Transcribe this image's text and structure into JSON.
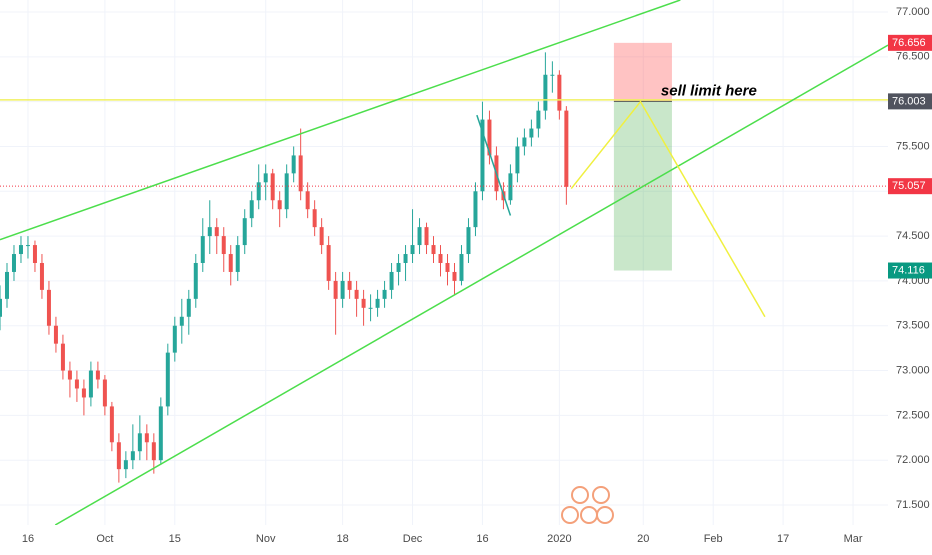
{
  "chart_data": {
    "type": "candlestick",
    "series": [
      {
        "up_color": "#26a69a",
        "down_color": "#ef5350",
        "x": [
          -4,
          -3,
          -2,
          -1,
          0,
          1,
          2,
          3,
          4,
          5,
          6,
          7,
          8,
          9,
          10,
          11,
          12,
          13,
          14,
          15,
          16,
          17,
          18,
          19,
          20,
          21,
          22,
          23,
          24,
          25,
          26,
          27,
          28,
          29,
          30,
          31,
          32,
          33,
          34,
          35,
          36,
          37,
          38,
          39,
          40,
          41,
          42,
          43,
          44,
          45,
          46,
          47,
          48,
          49,
          50,
          51,
          52,
          53,
          54,
          55,
          56,
          57,
          58,
          59,
          60,
          61,
          62,
          63,
          64,
          65,
          66,
          67,
          68,
          69,
          70,
          71,
          72,
          73,
          74,
          75,
          76,
          77
        ],
        "open": [
          73.6,
          73.8,
          74.1,
          74.3,
          74.4,
          74.4,
          74.2,
          73.9,
          73.5,
          73.3,
          73.0,
          72.9,
          72.8,
          72.7,
          73.0,
          72.9,
          72.6,
          72.2,
          71.9,
          72.0,
          72.1,
          72.3,
          72.2,
          72.0,
          72.6,
          73.2,
          73.5,
          73.6,
          73.8,
          74.2,
          74.5,
          74.6,
          74.5,
          74.3,
          74.1,
          74.4,
          74.7,
          74.9,
          75.1,
          75.2,
          74.9,
          74.8,
          75.2,
          75.4,
          75.0,
          74.8,
          74.6,
          74.4,
          74.0,
          73.8,
          74.0,
          73.9,
          73.8,
          73.7,
          73.7,
          73.8,
          73.9,
          74.1,
          74.2,
          74.3,
          74.4,
          74.6,
          74.4,
          74.3,
          74.2,
          74.1,
          74.0,
          74.3,
          74.6,
          75.0,
          75.8,
          75.4,
          75.0,
          74.9,
          75.2,
          75.5,
          75.6,
          75.7,
          75.9,
          76.3,
          76.3,
          75.9
        ],
        "high": [
          73.95,
          74.2,
          74.4,
          74.5,
          74.5,
          74.45,
          74.3,
          74.0,
          73.6,
          73.4,
          73.1,
          73.0,
          72.9,
          73.1,
          73.1,
          72.95,
          72.65,
          72.3,
          72.1,
          72.4,
          72.5,
          72.4,
          72.3,
          72.7,
          73.3,
          73.6,
          73.8,
          73.9,
          74.3,
          74.7,
          74.9,
          74.7,
          74.6,
          74.4,
          74.5,
          74.8,
          75.0,
          75.3,
          75.3,
          75.25,
          75.0,
          75.3,
          75.5,
          75.7,
          75.1,
          74.9,
          74.7,
          74.5,
          74.1,
          74.1,
          74.1,
          74.0,
          73.9,
          73.85,
          73.9,
          74.0,
          74.2,
          74.3,
          74.4,
          74.8,
          74.7,
          74.65,
          74.5,
          74.4,
          74.3,
          74.2,
          74.4,
          74.7,
          75.1,
          76.0,
          75.9,
          75.5,
          75.1,
          75.3,
          75.6,
          75.7,
          75.8,
          76.0,
          76.55,
          76.45,
          76.35,
          75.95
        ],
        "low": [
          73.45,
          73.7,
          74.0,
          74.2,
          74.25,
          74.1,
          73.8,
          73.4,
          73.2,
          72.9,
          72.7,
          72.65,
          72.5,
          72.6,
          72.8,
          72.5,
          72.1,
          71.75,
          71.8,
          71.9,
          72.0,
          72.0,
          71.85,
          71.95,
          72.5,
          73.1,
          73.3,
          73.4,
          73.7,
          74.1,
          74.3,
          74.3,
          74.1,
          73.95,
          74.0,
          74.3,
          74.6,
          74.8,
          74.9,
          74.8,
          74.6,
          74.7,
          75.1,
          74.9,
          74.7,
          74.5,
          74.3,
          73.9,
          73.4,
          73.7,
          73.8,
          73.6,
          73.5,
          73.55,
          73.6,
          73.7,
          73.8,
          73.95,
          74.0,
          74.2,
          74.3,
          74.3,
          74.2,
          74.05,
          73.95,
          73.85,
          73.95,
          74.2,
          74.5,
          74.9,
          75.3,
          74.9,
          74.8,
          74.85,
          75.1,
          75.4,
          75.5,
          75.6,
          75.8,
          76.1,
          75.8,
          74.85
        ],
        "close": [
          73.8,
          74.1,
          74.3,
          74.4,
          74.4,
          74.2,
          73.9,
          73.5,
          73.3,
          73.0,
          72.9,
          72.8,
          72.7,
          73.0,
          72.9,
          72.6,
          72.2,
          71.9,
          72.0,
          72.1,
          72.3,
          72.2,
          72.0,
          72.6,
          73.2,
          73.5,
          73.6,
          73.8,
          74.2,
          74.5,
          74.6,
          74.5,
          74.3,
          74.1,
          74.4,
          74.7,
          74.9,
          75.1,
          75.2,
          74.9,
          74.8,
          75.2,
          75.4,
          75.0,
          74.8,
          74.6,
          74.4,
          74.0,
          73.8,
          74.0,
          73.9,
          73.8,
          73.7,
          73.7,
          73.8,
          73.9,
          74.1,
          74.2,
          74.3,
          74.4,
          74.6,
          74.4,
          74.3,
          74.2,
          74.1,
          74.0,
          74.3,
          74.6,
          75.0,
          75.8,
          75.4,
          75.0,
          74.9,
          75.2,
          75.5,
          75.6,
          75.7,
          75.9,
          76.3,
          76.3,
          75.9,
          75.05
        ]
      }
    ],
    "xlim": [
      -4,
      123
    ],
    "xticks": [
      {
        "value": 0,
        "label": "16"
      },
      {
        "value": 11,
        "label": "Oct"
      },
      {
        "value": 21,
        "label": "15"
      },
      {
        "value": 34,
        "label": "Nov"
      },
      {
        "value": 45,
        "label": "18"
      },
      {
        "value": 55,
        "label": "Dec"
      },
      {
        "value": 65,
        "label": "16"
      },
      {
        "value": 76,
        "label": "2020"
      },
      {
        "value": 88,
        "label": "20"
      },
      {
        "value": 98,
        "label": "Feb"
      },
      {
        "value": 108,
        "label": "17"
      },
      {
        "value": 118,
        "label": "Mar"
      }
    ],
    "ylim": [
      71.277,
      77.134
    ],
    "yticks": [
      {
        "value": 71.5,
        "label": "71.500"
      },
      {
        "value": 72,
        "label": "72.000"
      },
      {
        "value": 72.5,
        "label": "72.500"
      },
      {
        "value": 73,
        "label": "73.000"
      },
      {
        "value": 73.5,
        "label": "73.500"
      },
      {
        "value": 74,
        "label": "74.000"
      },
      {
        "value": 74.5,
        "label": "74.500"
      },
      {
        "value": 75,
        "label": "75.000"
      },
      {
        "value": 75.5,
        "label": "75.500"
      },
      {
        "value": 76,
        "label": "76.000"
      },
      {
        "value": 76.5,
        "label": "76.500"
      },
      {
        "value": 77,
        "label": "77.000"
      }
    ],
    "grid": true,
    "trendlines": [
      {
        "color": "#4cde4c",
        "x": [
          -4,
          93.3
        ],
        "y": [
          74.46,
          77.134
        ]
      },
      {
        "color": "#4cde4c",
        "x": [
          3.9,
          123
        ],
        "y": [
          71.277,
          76.63
        ]
      },
      {
        "color": "#26a69a",
        "x": [
          64.2,
          69
        ],
        "y": [
          75.85,
          74.73
        ]
      },
      {
        "color": "#f0f040",
        "x": [
          77.7,
          87.6,
          105.4
        ],
        "y": [
          75.03,
          76.0,
          73.6
        ]
      }
    ],
    "horizontal_line": {
      "value": 76.02,
      "color": "#f0f060"
    },
    "last_price": {
      "value": 75.057,
      "color": "#f23645"
    },
    "position": {
      "x": [
        83.8,
        92.1
      ],
      "entry": 76.003,
      "stop": 76.656,
      "target": 74.116
    },
    "annotation": "sell limit here"
  }
}
